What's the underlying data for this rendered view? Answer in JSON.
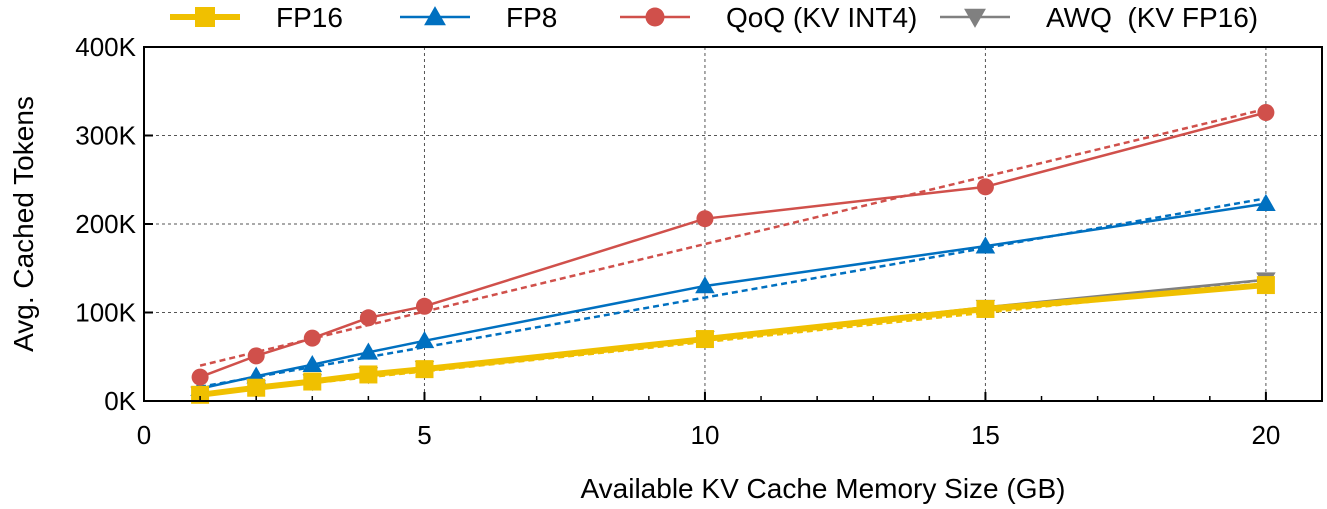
{
  "chart_data": {
    "type": "line",
    "xlabel": "Available KV Cache Memory Size (GB)",
    "ylabel": "Avg. Cached Tokens",
    "xlim": [
      0,
      21
    ],
    "ylim": [
      0,
      400000
    ],
    "x_ticks": [
      0,
      5,
      10,
      15,
      20
    ],
    "x_tick_labels": [
      "0",
      "5",
      "10",
      "15",
      "20"
    ],
    "y_ticks": [
      0,
      100000,
      200000,
      300000,
      400000
    ],
    "y_tick_labels": [
      "0K",
      "100K",
      "200K",
      "300K",
      "400K"
    ],
    "grid": true,
    "legend_position": "top",
    "series": [
      {
        "name": "FP16",
        "marker": "square",
        "color": "#F0C000",
        "x": [
          1,
          2,
          3,
          4,
          5,
          10,
          15,
          20
        ],
        "values": [
          7000,
          15000,
          22000,
          30000,
          36000,
          70000,
          104000,
          131000
        ],
        "trend": [
          7000,
          133000
        ]
      },
      {
        "name": "FP8",
        "marker": "triangle-up",
        "color": "#0070C0",
        "x": [
          1,
          2,
          3,
          4,
          5,
          10,
          15,
          20
        ],
        "values": [
          14000,
          28000,
          41000,
          55000,
          68000,
          130000,
          175000,
          223000
        ],
        "trend": [
          16000,
          229000
        ]
      },
      {
        "name": "QoQ (KV INT4)",
        "marker": "circle",
        "color": "#D0504B",
        "x": [
          1,
          2,
          3,
          4,
          5,
          10,
          15,
          20
        ],
        "values": [
          27000,
          51000,
          71000,
          94000,
          107000,
          206000,
          242000,
          326000
        ],
        "trend": [
          40000,
          330000
        ]
      },
      {
        "name": "AWQ  (KV FP16)",
        "marker": "triangle-down",
        "color": "#808080",
        "x": [
          1,
          2,
          3,
          4,
          5,
          10,
          15,
          20
        ],
        "values": [
          8000,
          15000,
          22000,
          30000,
          37000,
          71000,
          106000,
          137000
        ],
        "trend": [
          8000,
          137000
        ]
      }
    ]
  }
}
